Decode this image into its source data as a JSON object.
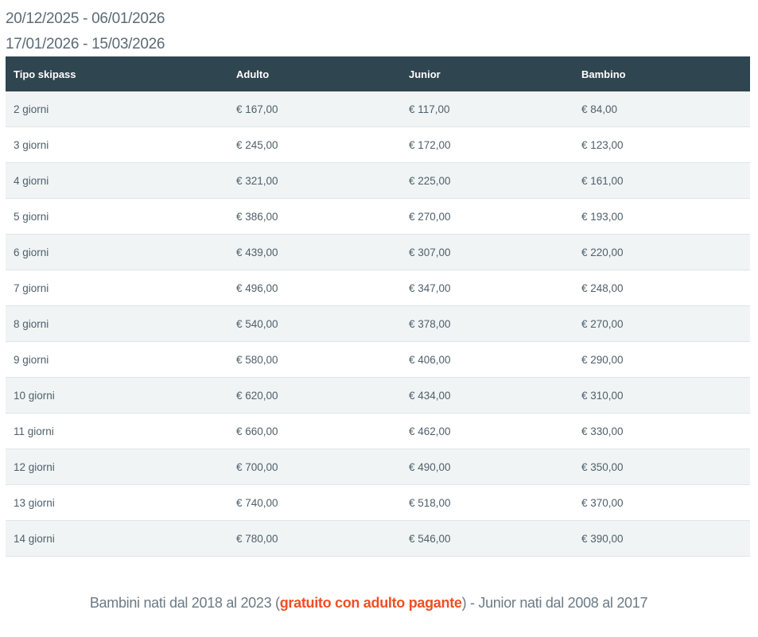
{
  "periods": [
    "20/12/2025 - 06/01/2026",
    "17/01/2026 - 15/03/2026"
  ],
  "table": {
    "headers": [
      "Tipo skipass",
      "Adulto",
      "Junior",
      "Bambino"
    ],
    "rows": [
      [
        "2 giorni",
        "€ 167,00",
        "€ 117,00",
        "€ 84,00"
      ],
      [
        "3 giorni",
        "€ 245,00",
        "€ 172,00",
        "€ 123,00"
      ],
      [
        "4 giorni",
        "€ 321,00",
        "€ 225,00",
        "€ 161,00"
      ],
      [
        "5 giorni",
        "€ 386,00",
        "€ 270,00",
        "€ 193,00"
      ],
      [
        "6 giorni",
        "€ 439,00",
        "€ 307,00",
        "€ 220,00"
      ],
      [
        "7 giorni",
        "€ 496,00",
        "€ 347,00",
        "€ 248,00"
      ],
      [
        "8 giorni",
        "€ 540,00",
        "€ 378,00",
        "€ 270,00"
      ],
      [
        "9 giorni",
        "€ 580,00",
        "€ 406,00",
        "€ 290,00"
      ],
      [
        "10 giorni",
        "€ 620,00",
        "€ 434,00",
        "€ 310,00"
      ],
      [
        "11 giorni",
        "€ 660,00",
        "€ 462,00",
        "€ 330,00"
      ],
      [
        "12 giorni",
        "€ 700,00",
        "€ 490,00",
        "€ 350,00"
      ],
      [
        "13 giorni",
        "€ 740,00",
        "€ 518,00",
        "€ 370,00"
      ],
      [
        "14 giorni",
        "€ 780,00",
        "€ 546,00",
        "€ 390,00"
      ]
    ]
  },
  "note": {
    "before": "Bambini nati dal 2018 al 2023 (",
    "highlight": "gratuito con adulto pagante",
    "after": ") - Junior nati dal 2008 al 2017"
  },
  "colors": {
    "header_bg": "#2f4550",
    "highlight": "#f04e23",
    "row_alt": "#f0f4f5"
  }
}
